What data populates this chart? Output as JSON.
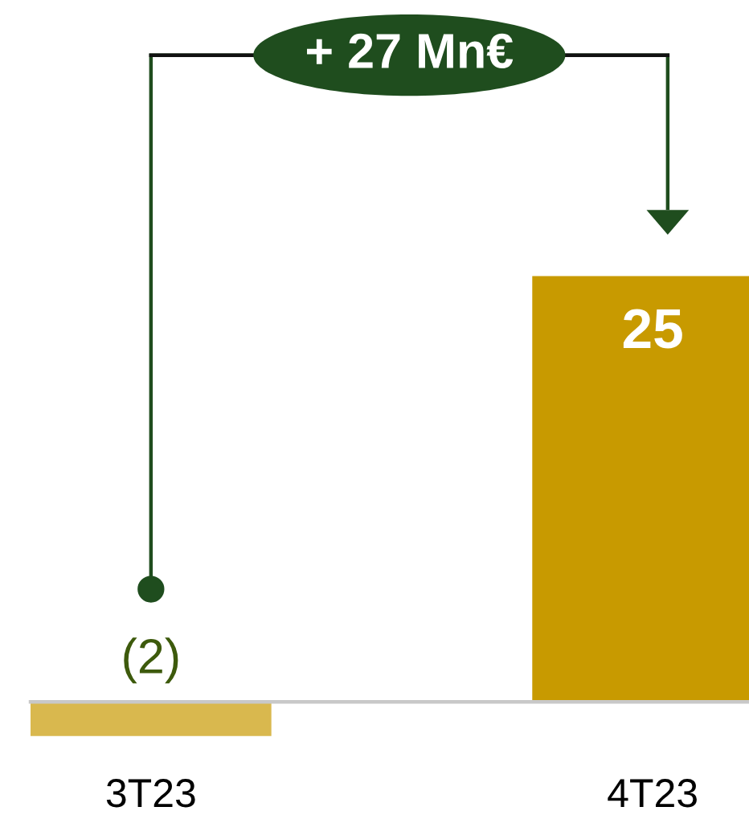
{
  "chart_data": {
    "type": "bar",
    "categories": [
      "3T23",
      "4T23"
    ],
    "values": [
      -2,
      25
    ],
    "colors": [
      "#d9b84e",
      "#c89a00"
    ],
    "value_labels": [
      "(2)",
      "25"
    ],
    "annotations": [
      "+ 27 Mn€"
    ],
    "tick_labels": "x"
  }
}
